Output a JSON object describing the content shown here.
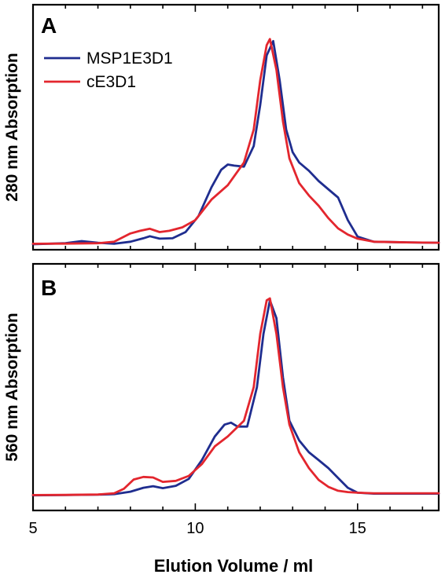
{
  "chart_data": [
    {
      "panel": "A",
      "type": "line",
      "ylabel": "280 nm Absorption",
      "xlim": [
        5,
        17.5
      ],
      "ylim": [
        0,
        1.0
      ],
      "yticks": false,
      "legend": {
        "position": "top-left"
      },
      "series": [
        {
          "name": "MSP1E3D1",
          "color": "#1f2d8f",
          "x": [
            5,
            6.0,
            6.5,
            7.0,
            7.5,
            8.0,
            8.4,
            8.6,
            8.9,
            9.3,
            9.7,
            10.1,
            10.5,
            10.8,
            11.0,
            11.2,
            11.5,
            11.8,
            12.0,
            12.2,
            12.4,
            12.6,
            12.8,
            13.0,
            13.2,
            13.5,
            13.8,
            14.1,
            14.4,
            14.7,
            15.0,
            15.5,
            16.5,
            17.5
          ],
          "y": [
            0.003,
            0.008,
            0.018,
            0.01,
            0.005,
            0.015,
            0.032,
            0.042,
            0.03,
            0.032,
            0.062,
            0.14,
            0.28,
            0.365,
            0.39,
            0.385,
            0.38,
            0.48,
            0.68,
            0.92,
            0.99,
            0.8,
            0.56,
            0.45,
            0.4,
            0.36,
            0.31,
            0.27,
            0.23,
            0.12,
            0.04,
            0.015,
            0.012,
            0.01
          ]
        },
        {
          "name": "cE3D1",
          "color": "#e3262e",
          "x": [
            5,
            6.0,
            7.0,
            7.5,
            8.0,
            8.3,
            8.6,
            8.9,
            9.2,
            9.6,
            10.0,
            10.5,
            11.0,
            11.5,
            11.8,
            12.0,
            12.2,
            12.3,
            12.5,
            12.7,
            12.9,
            13.2,
            13.5,
            13.8,
            14.1,
            14.4,
            14.7,
            15.0,
            15.5,
            16.5,
            17.5
          ],
          "y": [
            0.005,
            0.006,
            0.008,
            0.015,
            0.055,
            0.068,
            0.078,
            0.062,
            0.068,
            0.085,
            0.12,
            0.22,
            0.29,
            0.4,
            0.56,
            0.8,
            0.97,
            1.0,
            0.85,
            0.6,
            0.42,
            0.3,
            0.24,
            0.19,
            0.13,
            0.08,
            0.05,
            0.03,
            0.015,
            0.012,
            0.01
          ]
        }
      ]
    },
    {
      "panel": "B",
      "type": "line",
      "ylabel": "560 nm Absorption",
      "xlabel": "Elution Volume / ml",
      "xlim": [
        5,
        17.5
      ],
      "ylim": [
        0,
        1.0
      ],
      "yticks": false,
      "xticks": [
        5,
        10,
        15
      ],
      "xtick_labels": [
        "5",
        "10",
        "15"
      ],
      "series": [
        {
          "name": "MSP1E3D1",
          "color": "#1f2d8f",
          "x": [
            5,
            6.0,
            7.0,
            7.5,
            8.0,
            8.4,
            8.7,
            9.0,
            9.4,
            9.8,
            10.2,
            10.6,
            10.9,
            11.1,
            11.3,
            11.6,
            11.9,
            12.1,
            12.3,
            12.5,
            12.7,
            12.9,
            13.2,
            13.5,
            13.8,
            14.1,
            14.4,
            14.7,
            15.0,
            15.5,
            16.5,
            17.5
          ],
          "y": [
            0.002,
            0.003,
            0.005,
            0.008,
            0.02,
            0.04,
            0.048,
            0.038,
            0.05,
            0.085,
            0.18,
            0.3,
            0.36,
            0.37,
            0.35,
            0.35,
            0.55,
            0.82,
            0.99,
            0.9,
            0.6,
            0.38,
            0.28,
            0.22,
            0.18,
            0.14,
            0.09,
            0.04,
            0.015,
            0.01,
            0.01,
            0.01
          ]
        },
        {
          "name": "cE3D1",
          "color": "#e3262e",
          "x": [
            5,
            6.0,
            7.0,
            7.5,
            7.8,
            8.1,
            8.4,
            8.7,
            9.0,
            9.4,
            9.8,
            10.2,
            10.6,
            11.0,
            11.5,
            11.8,
            12.0,
            12.2,
            12.3,
            12.5,
            12.7,
            12.9,
            13.2,
            13.5,
            13.8,
            14.1,
            14.4,
            14.7,
            15.0,
            15.5,
            16.5,
            17.5
          ],
          "y": [
            0.003,
            0.004,
            0.006,
            0.012,
            0.035,
            0.082,
            0.095,
            0.092,
            0.07,
            0.075,
            0.1,
            0.16,
            0.25,
            0.3,
            0.38,
            0.55,
            0.82,
            0.99,
            1.0,
            0.82,
            0.55,
            0.36,
            0.22,
            0.14,
            0.08,
            0.045,
            0.025,
            0.018,
            0.015,
            0.012,
            0.012,
            0.012
          ]
        }
      ]
    }
  ]
}
